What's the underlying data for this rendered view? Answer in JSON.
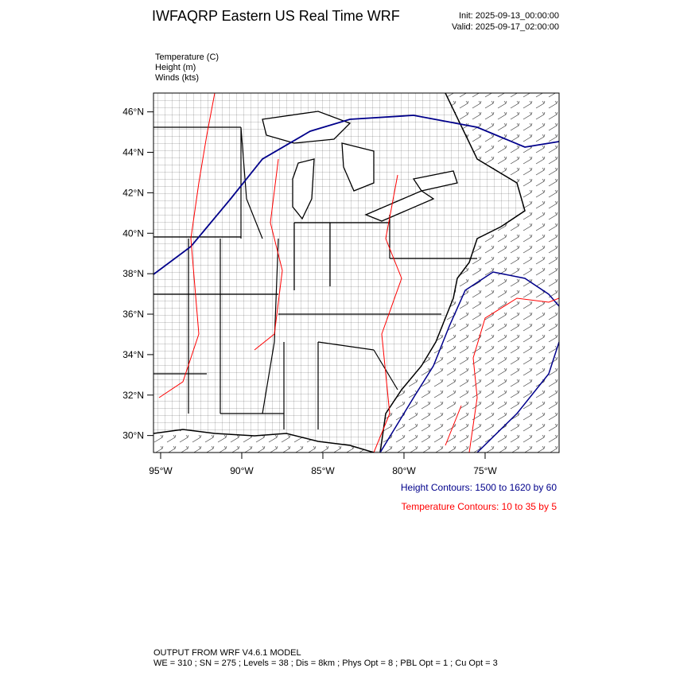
{
  "header": {
    "title": "IWFAQRP Eastern US Real Time WRF",
    "init": "Init: 2025-09-13_00:00:00",
    "valid": "Valid: 2025-09-17_02:00:00"
  },
  "fields": [
    "Temperature   (C)",
    "Height   (m)",
    "Winds   (kts)"
  ],
  "map": {
    "ylim": [
      29.16,
      46.93
    ],
    "xlim": [
      -95.44,
      -70.44
    ],
    "yticks": [
      {
        "value": 30,
        "label": "30°N"
      },
      {
        "value": 32,
        "label": "32°N"
      },
      {
        "value": 34,
        "label": "34°N"
      },
      {
        "value": 36,
        "label": "36°N"
      },
      {
        "value": 38,
        "label": "38°N"
      },
      {
        "value": 40,
        "label": "40°N"
      },
      {
        "value": 42,
        "label": "42°N"
      },
      {
        "value": 44,
        "label": "44°N"
      },
      {
        "value": 46,
        "label": "46°N"
      }
    ],
    "xticks": [
      {
        "value": -95,
        "label": "95°W"
      },
      {
        "value": -90,
        "label": "90°W"
      },
      {
        "value": -85,
        "label": "85°W"
      },
      {
        "value": -80,
        "label": "80°W"
      },
      {
        "value": -75,
        "label": "75°W"
      }
    ]
  },
  "contours": [
    {
      "label": "Height Contours: 1500 to 1620 by 60",
      "color": "#00008b"
    },
    {
      "label": "Temperature Contours: 10 to 35 by 5",
      "color": "#ff0000"
    }
  ],
  "footer": {
    "line1": "OUTPUT FROM WRF V4.6.1 MODEL",
    "line2": "WE = 310 ; SN = 275 ; Levels = 38 ; Dis = 8km ; Phys Opt = 8 ; PBL Opt = 1 ; Cu Opt = 3"
  }
}
